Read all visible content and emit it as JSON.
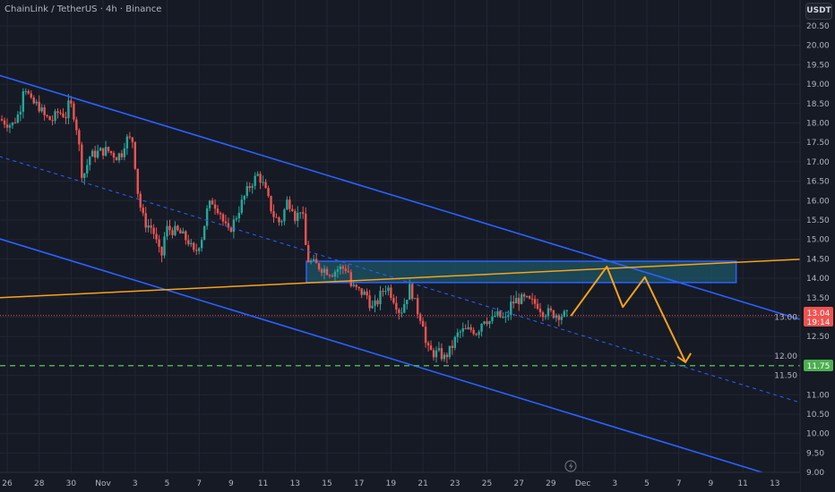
{
  "header": {
    "title": "ChainLink / TetherUS · 4h · Binance",
    "currency_button": "USDT"
  },
  "colors": {
    "background": "#161a25",
    "grid": "#222633",
    "up": "#26a69a",
    "down": "#ef5350",
    "channel": "#2962ff",
    "trendline": "#f7a21b",
    "support": "#4caf50",
    "box_fill": "#1c5a6b",
    "box_border": "#2962ff"
  },
  "chart_data": {
    "type": "candlestick",
    "symbol": "ChainLink / TetherUS",
    "interval": "4h",
    "exchange": "Binance",
    "ylim": [
      9.0,
      20.5
    ],
    "y_ticks": [
      "9.00",
      "9.50",
      "10.00",
      "10.50",
      "11.00",
      "11.50",
      "12.00",
      "12.50",
      "13.00",
      "13.50",
      "14.00",
      "14.50",
      "15.00",
      "15.50",
      "16.00",
      "16.50",
      "17.00",
      "17.50",
      "18.00",
      "18.50",
      "19.00",
      "19.50",
      "20.00",
      "20.50"
    ],
    "x_ticks": [
      {
        "label": "26",
        "date": "Oct 26"
      },
      {
        "label": "28",
        "date": "Oct 28"
      },
      {
        "label": "30",
        "date": "Oct 30"
      },
      {
        "label": "Nov",
        "date": "Nov 1"
      },
      {
        "label": "3",
        "date": "Nov 3"
      },
      {
        "label": "5",
        "date": "Nov 5"
      },
      {
        "label": "7",
        "date": "Nov 7"
      },
      {
        "label": "9",
        "date": "Nov 9"
      },
      {
        "label": "11",
        "date": "Nov 11"
      },
      {
        "label": "13",
        "date": "Nov 13"
      },
      {
        "label": "15",
        "date": "Nov 15"
      },
      {
        "label": "17",
        "date": "Nov 17"
      },
      {
        "label": "19",
        "date": "Nov 19"
      },
      {
        "label": "21",
        "date": "Nov 21"
      },
      {
        "label": "23",
        "date": "Nov 23"
      },
      {
        "label": "25",
        "date": "Nov 25"
      },
      {
        "label": "27",
        "date": "Nov 27"
      },
      {
        "label": "29",
        "date": "Nov 29"
      },
      {
        "label": "Dec",
        "date": "Dec 1"
      },
      {
        "label": "3",
        "date": "Dec 3"
      },
      {
        "label": "5",
        "date": "Dec 5"
      },
      {
        "label": "7",
        "date": "Dec 7"
      },
      {
        "label": "9",
        "date": "Dec 9"
      },
      {
        "label": "11",
        "date": "Dec 11"
      },
      {
        "label": "13",
        "date": "Dec 13"
      }
    ],
    "price_path": [
      [
        "Oct 25 12:00",
        18.1
      ],
      [
        "Oct 26 07:00",
        17.94
      ],
      [
        "Oct 26 19:00",
        18.29
      ],
      [
        "Oct 27 01:00",
        19.05
      ],
      [
        "Oct 27 12:00",
        18.52
      ],
      [
        "Oct 27 23:00",
        18.45
      ],
      [
        "Oct 28 08:00",
        18.17
      ],
      [
        "Oct 28 19:00",
        18.06
      ],
      [
        "Oct 29 05:00",
        18.29
      ],
      [
        "Oct 29 18:00",
        18.17
      ],
      [
        "Oct 29 21:00",
        18.59
      ],
      [
        "Oct 30 05:00",
        18.17
      ],
      [
        "Oct 30 10:00",
        17.71
      ],
      [
        "Oct 30 17:00",
        16.56
      ],
      [
        "Oct 31 04:00",
        17.14
      ],
      [
        "Oct 31 17:00",
        17.25
      ],
      [
        "Nov 1 06:00",
        17.3
      ],
      [
        "Nov 1 20:00",
        17.14
      ],
      [
        "Nov 2 06:00",
        17.25
      ],
      [
        "Nov 2 09:00",
        17.6
      ],
      [
        "Nov 2 20:00",
        17.55
      ],
      [
        "Nov 2 23:00",
        17.14
      ],
      [
        "Nov 3 03:00",
        16.33
      ],
      [
        "Nov 3 10:00",
        15.64
      ],
      [
        "Nov 3 16:00",
        15.41
      ],
      [
        "Nov 4 02:00",
        15.29
      ],
      [
        "Nov 4 15:00",
        14.49
      ],
      [
        "Nov 4 22:00",
        15.29
      ],
      [
        "Nov 5 18:00",
        15.18
      ],
      [
        "Nov 6 08:00",
        14.95
      ],
      [
        "Nov 6 17:00",
        14.6
      ],
      [
        "Nov 7 04:00",
        15.06
      ],
      [
        "Nov 7 13:00",
        15.82
      ],
      [
        "Nov 7 20:00",
        15.98
      ],
      [
        "Nov 8 07:00",
        15.75
      ],
      [
        "Nov 8 13:00",
        15.41
      ],
      [
        "Nov 8 20:00",
        15.18
      ],
      [
        "Nov 9 06:00",
        15.52
      ],
      [
        "Nov 9 14:00",
        15.87
      ],
      [
        "Nov 9 23:00",
        16.21
      ],
      [
        "Nov 10 06:00",
        16.44
      ],
      [
        "Nov 10 17:00",
        16.68
      ],
      [
        "Nov 11 02:00",
        16.33
      ],
      [
        "Nov 11 15:00",
        15.64
      ],
      [
        "Nov 12 02:00",
        15.41
      ],
      [
        "Nov 12 12:00",
        15.98
      ],
      [
        "Nov 12 20:00",
        15.87
      ],
      [
        "Nov 13 01:00",
        15.52
      ],
      [
        "Nov 13 10:00",
        15.87
      ],
      [
        "Nov 13 18:00",
        14.49
      ],
      [
        "Nov 14 04:00",
        14.37
      ],
      [
        "Nov 14 17:00",
        14.26
      ],
      [
        "Nov 15 07:00",
        14.14
      ],
      [
        "Nov 15 18:00",
        14.26
      ],
      [
        "Nov 16 07:00",
        14.26
      ],
      [
        "Nov 16 12:00",
        13.8
      ],
      [
        "Nov 16 23:00",
        13.68
      ],
      [
        "Nov 17 12:00",
        13.56
      ],
      [
        "Nov 17 19:00",
        13.22
      ],
      [
        "Nov 18 02:00",
        13.33
      ],
      [
        "Nov 18 11:00",
        13.68
      ],
      [
        "Nov 18 18:00",
        13.8
      ],
      [
        "Nov 19 05:00",
        13.45
      ],
      [
        "Nov 19 14:00",
        13.1
      ],
      [
        "Nov 19 22:00",
        13.45
      ],
      [
        "Nov 20 05:00",
        13.8
      ],
      [
        "Nov 20 14:00",
        13.22
      ],
      [
        "Nov 21 00:00",
        12.87
      ],
      [
        "Nov 21 05:00",
        12.18
      ],
      [
        "Nov 21 15:00",
        12.07
      ],
      [
        "Nov 22 00:00",
        12.07
      ],
      [
        "Nov 22 08:00",
        11.95
      ],
      [
        "Nov 22 18:00",
        12.18
      ],
      [
        "Nov 23 03:00",
        12.53
      ],
      [
        "Nov 23 10:00",
        12.64
      ],
      [
        "Nov 23 16:00",
        12.64
      ],
      [
        "Nov 24 02:00",
        12.69
      ],
      [
        "Nov 24 09:00",
        12.6
      ],
      [
        "Nov 24 19:00",
        12.99
      ],
      [
        "Nov 25 06:00",
        12.87
      ],
      [
        "Nov 25 13:00",
        13.06
      ],
      [
        "Nov 25 22:00",
        12.99
      ],
      [
        "Nov 26 05:00",
        12.92
      ],
      [
        "Nov 26 12:00",
        13.33
      ],
      [
        "Nov 26 21:00",
        13.45
      ],
      [
        "Nov 27 08:00",
        13.45
      ],
      [
        "Nov 27 18:00",
        13.38
      ],
      [
        "Nov 28 04:00",
        13.33
      ],
      [
        "Nov 28 11:00",
        13.15
      ],
      [
        "Nov 29 00:00",
        13.1
      ],
      [
        "Nov 29 14:00",
        13.06
      ],
      [
        "Nov 30 03:00",
        13.04
      ]
    ],
    "last_price": {
      "value": "13.04",
      "countdown": "19:14",
      "color": "#ef5350"
    },
    "support_level": {
      "value": "11.75",
      "color": "#4caf50"
    },
    "drawings": {
      "channel_upper": [
        [
          "Oct 25 12:00",
          19.23
        ],
        [
          "Dec 14 14:00",
          12.94
        ]
      ],
      "channel_lower": [
        [
          "Oct 25 12:00",
          15.02
        ],
        [
          "Dec 12 13:00",
          8.96
        ]
      ],
      "channel_mid": [
        [
          "Oct 25 12:00",
          17.14
        ],
        [
          "Dec 14 14:00",
          10.8
        ]
      ],
      "orange_trendline": [
        [
          "Oct 25 12:00",
          13.5
        ],
        [
          "Dec 14 14:00",
          14.49
        ]
      ],
      "resistance_box": {
        "from": "Nov 13 17:00",
        "to": "Dec 10 14:00",
        "top": 14.44,
        "bottom": 13.89
      },
      "projection_path": [
        [
          "Nov 30 06:00",
          13.03
        ],
        [
          "Dec 2 12:00",
          14.3
        ],
        [
          "Dec 3 12:00",
          13.26
        ],
        [
          "Dec 4 21:00",
          14.03
        ],
        [
          "Dec 7 10:00",
          11.84
        ]
      ]
    }
  },
  "icons": {
    "bottom_marker": "lightning-icon"
  }
}
